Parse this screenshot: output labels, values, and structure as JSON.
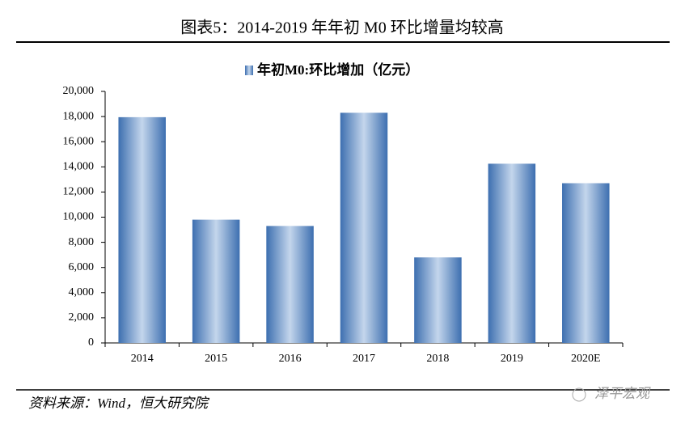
{
  "header": {
    "title": "图表5：2014-2019 年年初 M0 环比增量均较高"
  },
  "chart_data": {
    "type": "bar",
    "legend_title": "年初M0:环比增加（亿元）",
    "categories": [
      "2014",
      "2015",
      "2016",
      "2017",
      "2018",
      "2019",
      "2020E"
    ],
    "series": [
      {
        "name": "年初M0:环比增加（亿元）",
        "color": "#3d6fb0",
        "values": [
          17950,
          9800,
          9300,
          18300,
          6800,
          14250,
          12700
        ]
      }
    ],
    "ylim": [
      0,
      20000
    ],
    "yticks": [
      0,
      {
        "value": 2000,
        "label": "2,000"
      },
      {
        "value": 4000,
        "label": "4,000"
      },
      {
        "value": 6000,
        "label": "6,000"
      },
      {
        "value": 8000,
        "label": "8,000"
      },
      {
        "value": 10000,
        "label": "10,000"
      },
      {
        "value": 12000,
        "label": "12,000"
      },
      {
        "value": 14000,
        "label": "14,000"
      },
      {
        "value": 16000,
        "label": "16,000"
      },
      {
        "value": 18000,
        "label": "18,000"
      },
      {
        "value": 20000,
        "label": "20,000"
      }
    ],
    "grid": false,
    "legend": "top"
  },
  "footer": {
    "source": "资料来源：Wind，恒大研究院",
    "watermark": "泽平宏观"
  }
}
